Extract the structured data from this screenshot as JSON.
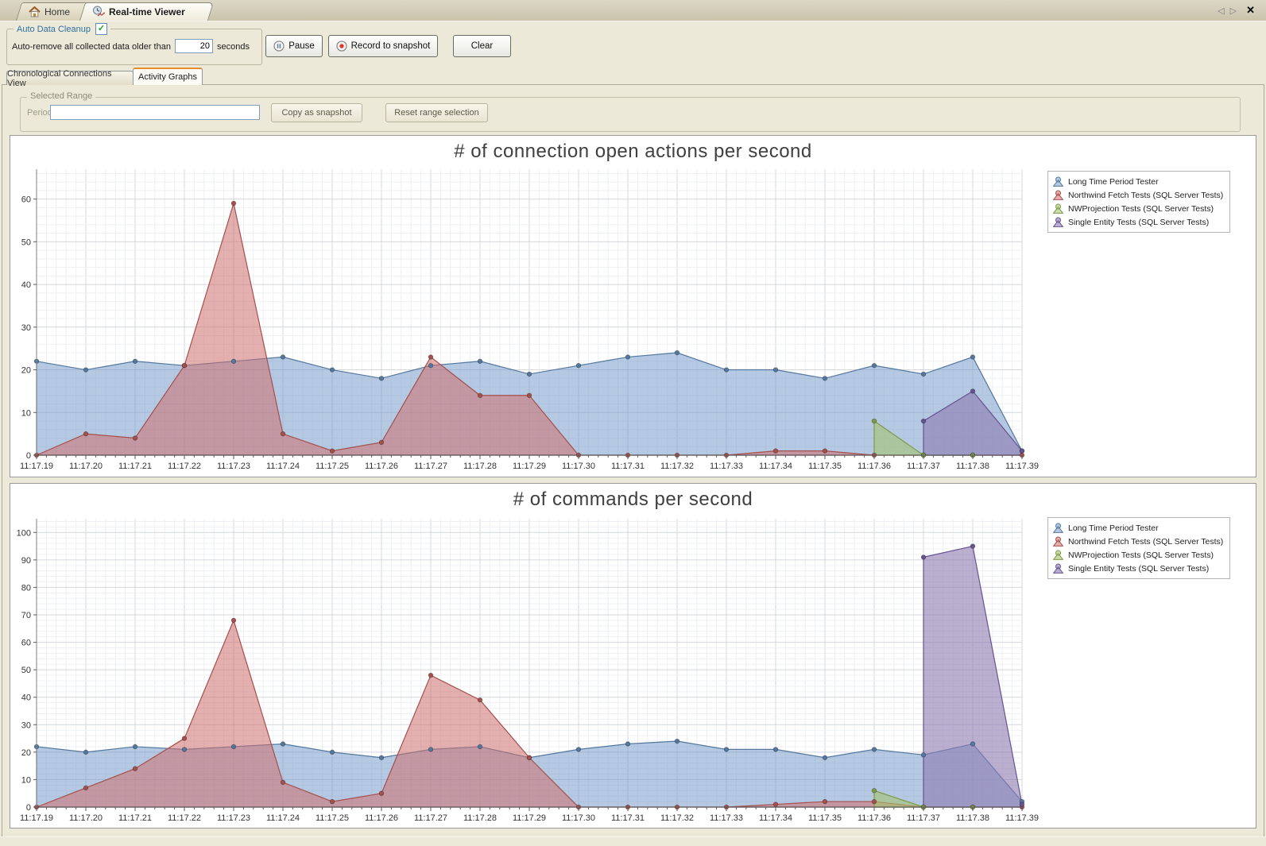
{
  "window": {
    "doc_tabs": [
      {
        "label": "Home"
      },
      {
        "label": "Real-time Viewer"
      }
    ],
    "scroll_icons": "◁ ▷",
    "close_icon": "✕"
  },
  "toolbar": {
    "group_label": "Auto Data Cleanup",
    "checkbox_checked": true,
    "check_glyph": "✓",
    "auto_remove_label": "Auto-remove all collected data older than",
    "seconds_value": "20",
    "seconds_unit": "seconds",
    "pause_label": "Pause",
    "record_label": "Record to snapshot",
    "clear_label": "Clear"
  },
  "view_tabs": [
    {
      "label": "Chronological Connections View"
    },
    {
      "label": "Activity Graphs"
    }
  ],
  "selected_range": {
    "group_label": "Selected Range",
    "period_label": "Period",
    "period_value": "",
    "copy_button": "Copy as snapshot",
    "reset_button": "Reset range selection"
  },
  "chart_data": [
    {
      "type": "area",
      "title": "# of connection open actions per second",
      "legend_position": "top-right",
      "grid": true,
      "ylim": [
        0,
        67
      ],
      "yticks": [
        0,
        10,
        20,
        30,
        40,
        50,
        60
      ],
      "x": [
        "11:17.19",
        "11:17.20",
        "11:17.21",
        "11:17.22",
        "11:17.23",
        "11:17.24",
        "11:17.25",
        "11:17.26",
        "11:17.27",
        "11:17.28",
        "11:17.29",
        "11:17.30",
        "11:17.31",
        "11:17.32",
        "11:17.33",
        "11:17.34",
        "11:17.35",
        "11:17.36",
        "11:17.37",
        "11:17.38",
        "11:17.39"
      ],
      "series": [
        {
          "name": "Long Time Period Tester",
          "color": "#54779e",
          "fill": "rgba(121,157,204,0.55)",
          "values": [
            22,
            20,
            22,
            21,
            22,
            23,
            20,
            18,
            21,
            22,
            19,
            21,
            23,
            24,
            20,
            20,
            18,
            21,
            19,
            23,
            1
          ]
        },
        {
          "name": "Northwind Fetch Tests (SQL Server Tests)",
          "color": "#a5504b",
          "fill": "rgba(205,112,110,0.55)",
          "values": [
            0,
            5,
            4,
            21,
            59,
            5,
            1,
            3,
            23,
            14,
            14,
            0,
            0,
            0,
            0,
            1,
            1,
            0,
            0,
            0,
            0
          ]
        },
        {
          "name": "NWProjection Tests (SQL Server Tests)",
          "color": "#7e9a43",
          "fill": "rgba(165,197,112,0.6)",
          "values": [
            null,
            null,
            null,
            null,
            null,
            null,
            null,
            null,
            null,
            null,
            null,
            null,
            null,
            null,
            null,
            null,
            null,
            8,
            0,
            0,
            null
          ]
        },
        {
          "name": "Single Entity Tests (SQL Server Tests)",
          "color": "#675390",
          "fill": "rgba(142,121,176,0.6)",
          "values": [
            null,
            null,
            null,
            null,
            null,
            null,
            null,
            null,
            null,
            null,
            null,
            null,
            null,
            null,
            null,
            null,
            null,
            null,
            8,
            15,
            1
          ]
        }
      ]
    },
    {
      "type": "area",
      "title": "# of commands per second",
      "legend_position": "top-right",
      "grid": true,
      "ylim": [
        0,
        105
      ],
      "yticks": [
        0,
        10,
        20,
        30,
        40,
        50,
        60,
        70,
        80,
        90,
        100
      ],
      "x": [
        "11:17.19",
        "11:17.20",
        "11:17.21",
        "11:17.22",
        "11:17.23",
        "11:17.24",
        "11:17.25",
        "11:17.26",
        "11:17.27",
        "11:17.28",
        "11:17.29",
        "11:17.30",
        "11:17.31",
        "11:17.32",
        "11:17.33",
        "11:17.34",
        "11:17.35",
        "11:17.36",
        "11:17.37",
        "11:17.38",
        "11:17.39"
      ],
      "series": [
        {
          "name": "Long Time Period Tester",
          "color": "#54779e",
          "fill": "rgba(121,157,204,0.55)",
          "values": [
            22,
            20,
            22,
            21,
            22,
            23,
            20,
            18,
            21,
            22,
            18,
            21,
            23,
            24,
            21,
            21,
            18,
            21,
            19,
            23,
            2
          ]
        },
        {
          "name": "Northwind Fetch Tests (SQL Server Tests)",
          "color": "#a5504b",
          "fill": "rgba(205,112,110,0.55)",
          "values": [
            0,
            7,
            14,
            25,
            68,
            9,
            2,
            5,
            48,
            39,
            18,
            0,
            0,
            0,
            0,
            1,
            2,
            2,
            0,
            0,
            0
          ]
        },
        {
          "name": "NWProjection Tests (SQL Server Tests)",
          "color": "#7e9a43",
          "fill": "rgba(165,197,112,0.6)",
          "values": [
            null,
            null,
            null,
            null,
            null,
            null,
            null,
            null,
            null,
            null,
            null,
            null,
            null,
            null,
            null,
            null,
            null,
            6,
            0,
            0,
            null
          ]
        },
        {
          "name": "Single Entity Tests (SQL Server Tests)",
          "color": "#675390",
          "fill": "rgba(142,121,176,0.6)",
          "values": [
            null,
            null,
            null,
            null,
            null,
            null,
            null,
            null,
            null,
            null,
            null,
            null,
            null,
            null,
            null,
            null,
            null,
            null,
            91,
            95,
            1
          ]
        }
      ]
    }
  ]
}
